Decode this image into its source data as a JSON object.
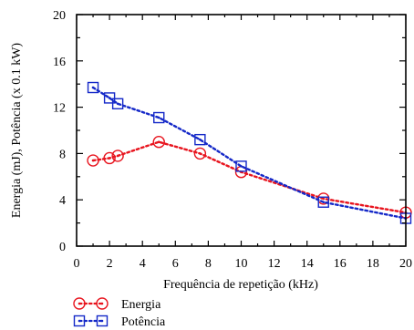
{
  "chart_data": {
    "type": "line",
    "xlabel": "Frequência de repetição (kHz)",
    "ylabel": "Energia (mJ), Potência (x 0.1 kW)",
    "xlim": [
      0,
      20
    ],
    "ylim": [
      0,
      20
    ],
    "xticks": [
      0,
      2,
      4,
      6,
      8,
      10,
      12,
      14,
      16,
      18,
      20
    ],
    "yticks": [
      0,
      4,
      8,
      12,
      16,
      20
    ],
    "xtick_labels": [
      "0",
      "2",
      "4",
      "6",
      "8",
      "10",
      "12",
      "14",
      "16",
      "18",
      "20"
    ],
    "ytick_labels": [
      "0",
      "4",
      "8",
      "12",
      "16",
      "20"
    ],
    "grid": false,
    "legend_position": "bottom-left",
    "series": [
      {
        "name": "Energia",
        "marker": "circle-dot",
        "line": "dotted",
        "color": "#e8141e",
        "x": [
          1,
          2,
          2.5,
          5,
          7.5,
          10,
          15,
          20
        ],
        "y": [
          7.4,
          7.6,
          7.8,
          9.0,
          8.0,
          6.4,
          4.1,
          2.9
        ]
      },
      {
        "name": "Potência",
        "marker": "square-dot",
        "line": "dotted",
        "color": "#1428c8",
        "x": [
          1,
          2,
          2.5,
          5,
          7.5,
          10,
          15,
          20
        ],
        "y": [
          13.7,
          12.8,
          12.3,
          11.1,
          9.2,
          6.9,
          3.8,
          2.4
        ]
      }
    ]
  }
}
